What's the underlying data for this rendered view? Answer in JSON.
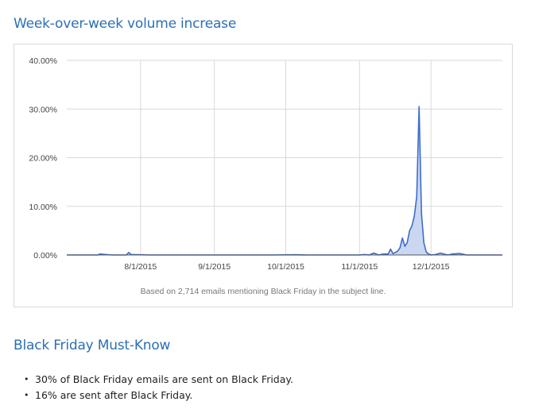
{
  "page": {
    "chart_heading": "Week-over-week volume increase",
    "section_heading": "Black Friday Must-Know",
    "bullets": [
      "30% of Black Friday emails are sent on Black Friday.",
      "16% are sent after Black Friday."
    ]
  },
  "colors": {
    "heading": "#2c6fb5",
    "series_line": "#3d6dcc",
    "series_fill": "#c5d3ef",
    "grid": "#d9d9d9"
  },
  "chart_data": {
    "type": "area",
    "title": "",
    "xlabel": "",
    "ylabel": "",
    "caption": "Based on 2,714 emails mentioning Black Friday in the subject line.",
    "x_axis": {
      "type": "date",
      "range": [
        "2015-07-01",
        "2015-12-31"
      ],
      "tick_values": [
        "2015-08-01",
        "2015-09-01",
        "2015-10-01",
        "2015-11-01",
        "2015-12-01"
      ],
      "tick_labels": [
        "8/1/2015",
        "9/1/2015",
        "10/1/2015",
        "11/1/2015",
        "12/1/2015"
      ]
    },
    "y_axis": {
      "range": [
        0,
        40
      ],
      "tick_values": [
        0,
        10,
        20,
        30,
        40
      ],
      "tick_labels": [
        "0.00%",
        "10.00%",
        "20.00%",
        "30.00%",
        "40.00%"
      ],
      "unit": "percent"
    },
    "grid": true,
    "legend": "none",
    "series": [
      {
        "x": [
          "2015-07-01",
          "2015-07-08",
          "2015-07-14",
          "2015-07-15",
          "2015-07-20",
          "2015-07-26",
          "2015-07-27",
          "2015-07-28",
          "2015-08-05",
          "2015-08-15",
          "2015-08-25",
          "2015-09-05",
          "2015-09-15",
          "2015-09-25",
          "2015-10-05",
          "2015-10-10",
          "2015-10-15",
          "2015-10-25",
          "2015-10-31",
          "2015-11-01",
          "2015-11-03",
          "2015-11-05",
          "2015-11-07",
          "2015-11-09",
          "2015-11-11",
          "2015-11-13",
          "2015-11-14",
          "2015-11-15",
          "2015-11-16",
          "2015-11-17",
          "2015-11-18",
          "2015-11-19",
          "2015-11-20",
          "2015-11-21",
          "2015-11-22",
          "2015-11-23",
          "2015-11-24",
          "2015-11-25",
          "2015-11-26",
          "2015-11-27",
          "2015-11-28",
          "2015-11-29",
          "2015-11-30",
          "2015-12-01",
          "2015-12-03",
          "2015-12-05",
          "2015-12-08",
          "2015-12-10",
          "2015-12-13",
          "2015-12-16",
          "2015-12-20",
          "2015-12-31"
        ],
        "values": [
          0,
          0,
          0,
          0.2,
          0,
          0,
          0.5,
          0.1,
          0,
          0,
          0,
          0,
          0,
          0,
          0.05,
          0,
          0,
          0,
          0,
          0,
          0.1,
          0,
          0.4,
          0,
          0.2,
          0.2,
          1.2,
          0.3,
          0.5,
          0.8,
          1.5,
          3.5,
          1.8,
          2.5,
          5,
          6,
          8,
          12,
          30.5,
          8.5,
          2.5,
          0.6,
          0.2,
          0,
          0.1,
          0.4,
          0,
          0.2,
          0.3,
          0,
          0,
          0
        ]
      }
    ]
  }
}
